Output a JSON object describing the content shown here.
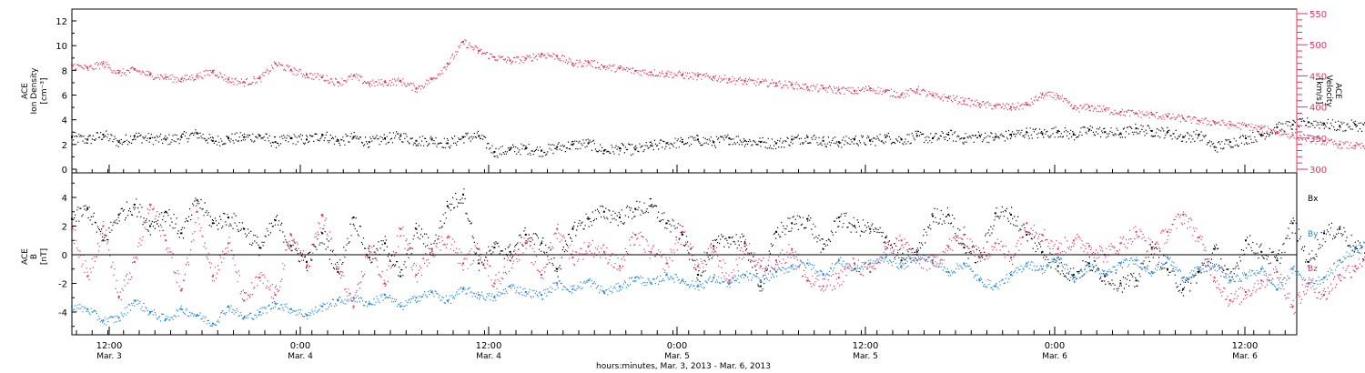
{
  "chart_data": [
    {
      "type": "scatter",
      "panel": "top",
      "ylabel": [
        "ACE",
        "Ion Density",
        "[cm⁻³]"
      ],
      "ylabel_right": [
        "ACE",
        "Velocity",
        "[km/s]"
      ],
      "ylim": [
        0,
        13
      ],
      "yticks": [
        "0",
        "2",
        "4",
        "6",
        "8",
        "10",
        "12"
      ],
      "ylim_right": [
        300,
        555
      ],
      "yticks_right": [
        "300",
        "350",
        "400",
        "450",
        "500",
        "550"
      ],
      "series": [
        {
          "axis": "left",
          "color": "#000000",
          "x": [
            0,
            2,
            4,
            6,
            8,
            10,
            12,
            14,
            16,
            18,
            20,
            22,
            24,
            26,
            28,
            30,
            32,
            34,
            36,
            38,
            40,
            42,
            44,
            46,
            48,
            50,
            52,
            54,
            56,
            58,
            60,
            62,
            64,
            66,
            68,
            70,
            72,
            74,
            76,
            78,
            80,
            82,
            84,
            86,
            88,
            90,
            92,
            94,
            96,
            98,
            100,
            102,
            104,
            106,
            108,
            110,
            112,
            114,
            116,
            118,
            120,
            122,
            124,
            126,
            128,
            130,
            132,
            134,
            136,
            138,
            140,
            142,
            144,
            146,
            148,
            150,
            152,
            154,
            156,
            158,
            160,
            162,
            164,
            166
          ],
          "values": [
            2.6,
            2.4,
            2.8,
            2.2,
            2.7,
            2.5,
            2.4,
            2.6,
            2.9,
            2.3,
            2.5,
            2.6,
            2.7,
            2.2,
            2.5,
            2.4,
            2.8,
            2.3,
            2.6,
            2.2,
            2.5,
            2.7,
            2.3,
            2.4,
            2.1,
            2.6,
            2.7,
            1.4,
            1.6,
            1.7,
            1.5,
            1.8,
            2.0,
            2.1,
            1.5,
            1.7,
            1.6,
            1.9,
            2.1,
            2.2,
            2.4,
            2.2,
            2.5,
            2.3,
            2.2,
            2.1,
            2.4,
            2.6,
            2.3,
            2.2,
            2.4,
            2.3,
            2.6,
            2.4,
            2.7,
            2.5,
            2.8,
            2.5,
            2.7,
            2.6,
            2.8,
            3.0,
            2.9,
            3.1,
            2.8,
            3.2,
            3.0,
            2.9,
            3.3,
            3.1,
            3.0,
            2.6,
            2.8,
            1.8,
            2.2,
            2.5,
            2.8,
            3.4,
            3.6,
            3.8,
            3.7,
            3.5,
            3.6,
            3.4
          ]
        },
        {
          "axis": "right",
          "color": "#e8315f",
          "x": [
            0,
            2,
            4,
            6,
            8,
            10,
            12,
            14,
            16,
            18,
            20,
            22,
            24,
            26,
            28,
            30,
            32,
            34,
            36,
            38,
            40,
            42,
            44,
            46,
            48,
            50,
            52,
            54,
            56,
            58,
            60,
            62,
            64,
            66,
            68,
            70,
            72,
            74,
            76,
            78,
            80,
            82,
            84,
            86,
            88,
            90,
            92,
            94,
            96,
            98,
            100,
            102,
            104,
            106,
            108,
            110,
            112,
            114,
            116,
            118,
            120,
            122,
            124,
            126,
            128,
            130,
            132,
            134,
            136,
            138,
            140,
            142,
            144,
            146,
            148,
            150,
            152,
            154,
            156,
            158,
            160,
            162,
            164,
            166
          ],
          "values": [
            468,
            462,
            470,
            455,
            460,
            452,
            448,
            445,
            450,
            458,
            444,
            440,
            446,
            470,
            460,
            452,
            448,
            440,
            450,
            438,
            440,
            442,
            430,
            445,
            470,
            505,
            490,
            480,
            475,
            478,
            485,
            482,
            470,
            472,
            465,
            462,
            458,
            456,
            454,
            452,
            450,
            448,
            445,
            442,
            440,
            438,
            436,
            432,
            430,
            428,
            426,
            430,
            425,
            420,
            428,
            418,
            415,
            410,
            405,
            402,
            400,
            404,
            420,
            418,
            398,
            400,
            396,
            392,
            390,
            388,
            385,
            382,
            378,
            376,
            372,
            370,
            366,
            360,
            355,
            350,
            345,
            340,
            338,
            336
          ]
        }
      ]
    },
    {
      "type": "scatter",
      "panel": "bottom",
      "ylabel": [
        "ACE",
        "B",
        "[nT]"
      ],
      "ylim": [
        -6,
        5.6
      ],
      "yticks": [
        "-4",
        "-2",
        "0",
        "2",
        "4"
      ],
      "legend": [
        "Bx",
        "By",
        "Bz"
      ],
      "legend_position": "right",
      "series": [
        {
          "name": "Bx",
          "color": "#000000",
          "x": [
            0,
            2,
            4,
            6,
            8,
            10,
            12,
            14,
            16,
            18,
            20,
            22,
            24,
            26,
            28,
            30,
            32,
            34,
            36,
            38,
            40,
            42,
            44,
            46,
            48,
            50,
            52,
            54,
            56,
            58,
            60,
            62,
            64,
            66,
            68,
            70,
            72,
            74,
            76,
            78,
            80,
            82,
            84,
            86,
            88,
            90,
            92,
            94,
            96,
            98,
            100,
            102,
            104,
            106,
            108,
            110,
            112,
            114,
            116,
            118,
            120,
            122,
            124,
            126,
            128,
            130,
            132,
            134,
            136,
            138,
            140,
            142,
            144,
            146,
            148,
            150,
            152,
            154,
            156,
            158,
            160,
            162,
            164,
            166
          ],
          "values": [
            2.5,
            3.2,
            1.0,
            2.8,
            3.5,
            2.0,
            3.0,
            1.5,
            3.8,
            2.2,
            2.6,
            1.8,
            0.5,
            2.4,
            0.6,
            -0.5,
            1.5,
            -1.2,
            2.6,
            -0.2,
            0.8,
            -1.5,
            1.8,
            0.4,
            3.4,
            4.2,
            -0.6,
            0.5,
            0.2,
            1.4,
            0.8,
            -1.0,
            1.8,
            2.5,
            3.0,
            2.6,
            3.2,
            3.4,
            2.2,
            1.4,
            -1.4,
            0.6,
            1.2,
            0.8,
            -2.2,
            1.6,
            2.2,
            2.5,
            0.4,
            2.6,
            2.0,
            1.8,
            1.2,
            -0.4,
            0.2,
            2.7,
            2.8,
            0.5,
            -0.2,
            2.9,
            2.8,
            1.4,
            0.2,
            -0.8,
            -1.4,
            -0.6,
            -1.5,
            -2.0,
            -1.8,
            0.5,
            -1.0,
            -2.4,
            -1.2,
            0.4,
            -1.8,
            1.0,
            0.2,
            -0.4,
            2.2,
            -0.5,
            1.5,
            1.8,
            0.5,
            -0.2
          ]
        },
        {
          "name": "By",
          "color": "#1f86dc",
          "x": [
            0,
            2,
            4,
            6,
            8,
            10,
            12,
            14,
            16,
            18,
            20,
            22,
            24,
            26,
            28,
            30,
            32,
            34,
            36,
            38,
            40,
            42,
            44,
            46,
            48,
            50,
            52,
            54,
            56,
            58,
            60,
            62,
            64,
            66,
            68,
            70,
            72,
            74,
            76,
            78,
            80,
            82,
            84,
            86,
            88,
            90,
            92,
            94,
            96,
            98,
            100,
            102,
            104,
            106,
            108,
            110,
            112,
            114,
            116,
            118,
            120,
            122,
            124,
            126,
            128,
            130,
            132,
            134,
            136,
            138,
            140,
            142,
            144,
            146,
            148,
            150,
            152,
            154,
            156,
            158,
            160,
            162,
            164,
            166
          ],
          "values": [
            -3.6,
            -3.8,
            -4.6,
            -4.4,
            -3.2,
            -4.0,
            -4.5,
            -3.8,
            -4.2,
            -4.8,
            -3.6,
            -4.4,
            -4.0,
            -3.4,
            -3.8,
            -4.2,
            -3.6,
            -3.2,
            -3.0,
            -3.4,
            -2.8,
            -3.6,
            -3.0,
            -2.6,
            -3.2,
            -2.4,
            -2.8,
            -3.0,
            -2.2,
            -2.6,
            -2.8,
            -2.0,
            -2.4,
            -1.8,
            -2.6,
            -2.2,
            -1.6,
            -2.0,
            -1.4,
            -1.8,
            -2.2,
            -1.6,
            -2.0,
            -1.4,
            -1.8,
            -1.2,
            -0.8,
            -0.6,
            -1.4,
            -0.4,
            -1.0,
            -0.6,
            -0.2,
            -0.8,
            0.0,
            -0.4,
            -1.2,
            -0.6,
            -1.8,
            -2.2,
            -1.4,
            -0.6,
            -1.0,
            -0.2,
            -1.6,
            -0.8,
            -1.4,
            -0.6,
            -0.4,
            -1.2,
            -0.2,
            -1.6,
            -1.0,
            -0.8,
            -1.8,
            -1.4,
            -1.0,
            -2.4,
            -1.0,
            -2.0,
            -1.6,
            -0.4,
            0.4,
            1.4
          ]
        },
        {
          "name": "Bz",
          "color": "#e8315f",
          "x": [
            0,
            2,
            4,
            6,
            8,
            10,
            12,
            14,
            16,
            18,
            20,
            22,
            24,
            26,
            28,
            30,
            32,
            34,
            36,
            38,
            40,
            42,
            44,
            46,
            48,
            50,
            52,
            54,
            56,
            58,
            60,
            62,
            64,
            66,
            68,
            70,
            72,
            74,
            76,
            78,
            80,
            82,
            84,
            86,
            88,
            90,
            92,
            94,
            96,
            98,
            100,
            102,
            104,
            106,
            108,
            110,
            112,
            114,
            116,
            118,
            120,
            122,
            124,
            126,
            128,
            130,
            132,
            134,
            136,
            138,
            140,
            142,
            144,
            146,
            148,
            150,
            152,
            154,
            156,
            158,
            160,
            162,
            164,
            166
          ],
          "values": [
            1.8,
            -1.5,
            2.0,
            -3.0,
            -0.5,
            3.5,
            1.0,
            -2.5,
            3.0,
            -1.5,
            0.8,
            -3.2,
            -1.6,
            -2.8,
            1.4,
            -0.8,
            2.8,
            -1.0,
            -3.6,
            0.6,
            -2.0,
            1.8,
            -1.4,
            0.4,
            1.2,
            -0.6,
            0.4,
            -2.0,
            -0.4,
            0.8,
            -1.4,
            1.8,
            -0.2,
            0.6,
            0.2,
            -0.8,
            1.4,
            0.2,
            -0.6,
            1.6,
            -0.8,
            0.4,
            -1.8,
            0.6,
            -0.8,
            -0.4,
            0.4,
            -1.8,
            -2.2,
            -1.6,
            -0.6,
            -1.2,
            0.4,
            1.0,
            -0.4,
            -0.6,
            0.6,
            1.4,
            -0.2,
            0.8,
            -0.2,
            2.2,
            1.4,
            0.4,
            1.0,
            0.6,
            0.0,
            0.8,
            1.6,
            0.4,
            1.6,
            2.8,
            1.2,
            -1.6,
            -3.2,
            -2.6,
            -1.8,
            -1.2,
            -3.6,
            -2.0,
            -2.8,
            -1.4,
            -0.8,
            0.6
          ]
        }
      ]
    }
  ],
  "x_axis": {
    "ticks": [
      {
        "time": "12:00",
        "date": "Mar. 3"
      },
      {
        "time": "0:00",
        "date": "Mar. 4"
      },
      {
        "time": "12:00",
        "date": "Mar. 4"
      },
      {
        "time": "0:00",
        "date": "Mar. 5"
      },
      {
        "time": "12:00",
        "date": "Mar. 5"
      },
      {
        "time": "0:00",
        "date": "Mar. 6"
      },
      {
        "time": "12:00",
        "date": "Mar. 6"
      }
    ],
    "label": "hours:minutes, Mar. 3, 2013 - Mar. 6, 2013"
  },
  "colors": {
    "black_series": "#000000",
    "velocity": "#e8315f",
    "by": "#1f86dc",
    "bz": "#e8315f",
    "right_axis": "#e8315f"
  }
}
